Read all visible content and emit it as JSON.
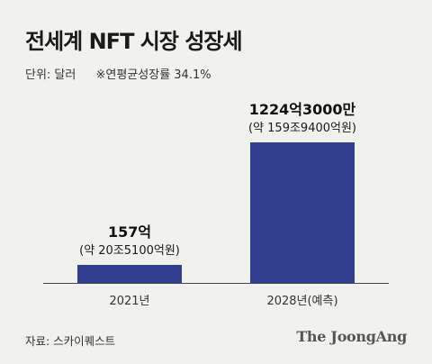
{
  "header": {
    "title": "전세계 NFT 시장 성장세",
    "unit_label": "단위: 달러",
    "cagr_note": "※연평균성장률 34.1%"
  },
  "chart_data": {
    "type": "bar",
    "title": "전세계 NFT 시장 성장세",
    "categories": [
      "2021년",
      "2028년(예측)"
    ],
    "values": [
      15700000000,
      122430000000
    ],
    "value_labels": [
      "157억",
      "1224억3000만"
    ],
    "value_sublabels": [
      "(약 20조5100억원)",
      "(약 159조9400억원)"
    ],
    "ylim": [
      0,
      122430000000
    ],
    "grid": false,
    "bar_color": "#323f8e"
  },
  "footer": {
    "source": "자료: 스카이퀘스트",
    "brand": "The JoongAng"
  }
}
